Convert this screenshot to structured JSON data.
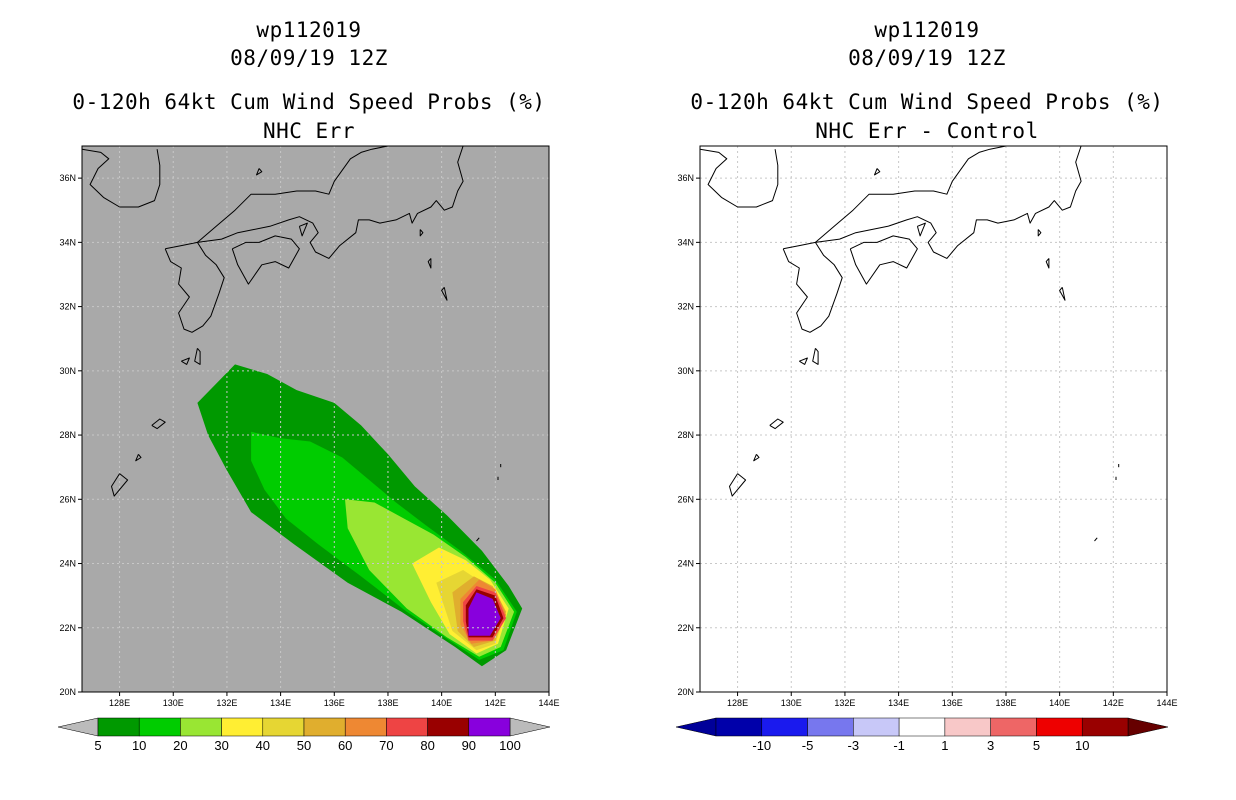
{
  "colors": {
    "left_background": "#a9a9a9",
    "right_background": "#ffffff",
    "coast": "#000000",
    "grid": "#c8c8c8"
  },
  "chart_data": [
    {
      "type": "contour-map",
      "storm": "wp112019",
      "date": "08/09/19 12Z",
      "title": "0-120h 64kt Cum Wind Speed Probs (%)",
      "subtitle": "NHC Err",
      "xlim": [
        126.6,
        144
      ],
      "ylim": [
        20,
        37
      ],
      "x_ticks": [
        "128E",
        "130E",
        "132E",
        "134E",
        "136E",
        "138E",
        "140E",
        "142E",
        "144E"
      ],
      "y_ticks": [
        "20N",
        "22N",
        "24N",
        "26N",
        "28N",
        "30N",
        "32N",
        "34N",
        "36N"
      ],
      "x_tick_values": [
        128,
        130,
        132,
        134,
        136,
        138,
        140,
        142,
        144
      ],
      "y_tick_values": [
        20,
        22,
        24,
        26,
        28,
        30,
        32,
        34,
        36
      ],
      "levels": [
        5,
        10,
        20,
        30,
        40,
        50,
        60,
        70,
        80,
        90,
        100
      ],
      "level_colors": [
        "#009900",
        "#00cc00",
        "#99e633",
        "#ffee33",
        "#e6d633",
        "#e0ae2e",
        "#ee8833",
        "#ee4444",
        "#990000",
        "#8800dd"
      ],
      "legend_labels": [
        "5",
        "10",
        "20",
        "30",
        "40",
        "50",
        "60",
        "70",
        "80",
        "90",
        "100"
      ],
      "contours": [
        {
          "level": 5,
          "color": "#009900",
          "points": [
            [
              130.9,
              29.0
            ],
            [
              132.3,
              30.2
            ],
            [
              133.5,
              29.9
            ],
            [
              134.6,
              29.4
            ],
            [
              136.0,
              29.0
            ],
            [
              137.0,
              28.3
            ],
            [
              138.0,
              27.4
            ],
            [
              139.0,
              26.4
            ],
            [
              140.2,
              25.5
            ],
            [
              141.5,
              24.4
            ],
            [
              142.5,
              23.3
            ],
            [
              143.0,
              22.6
            ],
            [
              142.4,
              21.3
            ],
            [
              141.5,
              20.8
            ],
            [
              140.5,
              21.4
            ],
            [
              138.5,
              22.5
            ],
            [
              136.5,
              23.4
            ],
            [
              134.5,
              24.6
            ],
            [
              132.9,
              25.6
            ],
            [
              132.0,
              26.9
            ],
            [
              131.3,
              28.0
            ]
          ]
        },
        {
          "level": 10,
          "color": "#00cc00",
          "points": [
            [
              132.9,
              28.1
            ],
            [
              134.0,
              27.9
            ],
            [
              135.1,
              27.8
            ],
            [
              136.3,
              27.3
            ],
            [
              137.3,
              26.6
            ],
            [
              138.3,
              25.9
            ],
            [
              139.4,
              25.2
            ],
            [
              140.7,
              24.4
            ],
            [
              142.0,
              23.5
            ],
            [
              142.8,
              22.5
            ],
            [
              142.3,
              21.3
            ],
            [
              141.4,
              21.0
            ],
            [
              140.3,
              21.6
            ],
            [
              138.7,
              22.5
            ],
            [
              137.0,
              23.6
            ],
            [
              135.4,
              24.6
            ],
            [
              134.2,
              25.4
            ],
            [
              133.4,
              26.3
            ],
            [
              132.9,
              27.2
            ]
          ]
        },
        {
          "level": 20,
          "color": "#99e633",
          "points": [
            [
              136.4,
              26.0
            ],
            [
              137.5,
              25.9
            ],
            [
              138.6,
              25.4
            ],
            [
              139.7,
              24.9
            ],
            [
              140.9,
              24.2
            ],
            [
              142.0,
              23.4
            ],
            [
              142.7,
              22.5
            ],
            [
              142.2,
              21.4
            ],
            [
              141.4,
              21.1
            ],
            [
              140.2,
              21.7
            ],
            [
              138.7,
              22.6
            ],
            [
              137.3,
              23.8
            ],
            [
              136.5,
              25.1
            ]
          ]
        },
        {
          "level": 30,
          "color": "#ffee33",
          "points": [
            [
              138.9,
              24.0
            ],
            [
              139.9,
              24.5
            ],
            [
              140.9,
              24.1
            ],
            [
              141.8,
              23.5
            ],
            [
              142.5,
              22.6
            ],
            [
              142.1,
              21.5
            ],
            [
              141.3,
              21.2
            ],
            [
              140.3,
              21.8
            ],
            [
              139.6,
              22.8
            ]
          ]
        },
        {
          "level": 40,
          "color": "#e6d633",
          "points": [
            [
              139.8,
              23.4
            ],
            [
              140.8,
              23.8
            ],
            [
              141.7,
              23.3
            ],
            [
              142.4,
              22.5
            ],
            [
              142.0,
              21.5
            ],
            [
              141.3,
              21.3
            ],
            [
              140.4,
              21.9
            ]
          ]
        },
        {
          "level": 50,
          "color": "#e0ae2e",
          "points": [
            [
              140.4,
              23.1
            ],
            [
              141.2,
              23.6
            ],
            [
              141.9,
              23.3
            ],
            [
              142.4,
              22.5
            ],
            [
              142.0,
              21.6
            ],
            [
              141.2,
              21.4
            ],
            [
              140.6,
              21.9
            ]
          ]
        },
        {
          "level": 60,
          "color": "#ee8833",
          "points": [
            [
              140.7,
              22.9
            ],
            [
              141.4,
              23.5
            ],
            [
              142.0,
              23.2
            ],
            [
              142.4,
              22.4
            ],
            [
              141.9,
              21.6
            ],
            [
              141.1,
              21.5
            ],
            [
              140.7,
              22.1
            ]
          ]
        },
        {
          "level": 70,
          "color": "#ee4444",
          "points": [
            [
              140.8,
              22.8
            ],
            [
              141.3,
              23.3
            ],
            [
              142.0,
              23.1
            ],
            [
              142.4,
              22.3
            ],
            [
              141.9,
              21.6
            ],
            [
              141.0,
              21.6
            ],
            [
              140.8,
              22.2
            ]
          ]
        },
        {
          "level": 80,
          "color": "#990000",
          "points": [
            [
              140.9,
              22.7
            ],
            [
              141.3,
              23.2
            ],
            [
              142.0,
              23.0
            ],
            [
              142.3,
              22.3
            ],
            [
              141.9,
              21.7
            ],
            [
              141.0,
              21.7
            ],
            [
              140.9,
              22.2
            ]
          ]
        },
        {
          "level": 90,
          "color": "#8800dd",
          "points": [
            [
              141.0,
              22.6
            ],
            [
              141.3,
              23.1
            ],
            [
              141.9,
              22.9
            ],
            [
              142.2,
              22.3
            ],
            [
              141.8,
              21.75
            ],
            [
              141.0,
              21.75
            ],
            [
              141.0,
              22.2
            ]
          ]
        }
      ]
    },
    {
      "type": "contour-map",
      "storm": "wp112019",
      "date": "08/09/19 12Z",
      "title": "0-120h 64kt Cum Wind Speed Probs (%)",
      "subtitle": "NHC Err - Control",
      "xlim": [
        126.6,
        144
      ],
      "ylim": [
        20,
        37
      ],
      "x_ticks": [
        "128E",
        "130E",
        "132E",
        "134E",
        "136E",
        "138E",
        "140E",
        "142E",
        "144E"
      ],
      "y_ticks": [
        "20N",
        "22N",
        "24N",
        "26N",
        "28N",
        "30N",
        "32N",
        "34N",
        "36N"
      ],
      "x_tick_values": [
        128,
        130,
        132,
        134,
        136,
        138,
        140,
        142,
        144
      ],
      "y_tick_values": [
        20,
        22,
        24,
        26,
        28,
        30,
        32,
        34,
        36
      ],
      "levels": [
        -10,
        -5,
        -3,
        -1,
        1,
        3,
        5,
        10
      ],
      "level_colors": [
        "#0000aa",
        "#1a1aee",
        "#7777ee",
        "#c8c8f8",
        "#ffffff",
        "#f8c8c8",
        "#ee6666",
        "#ee0000",
        "#990000"
      ],
      "legend_labels": [
        "-10",
        "-5",
        "-3",
        "-1",
        "1",
        "3",
        "5",
        "10"
      ],
      "contours": []
    }
  ],
  "coastlines": [
    [
      [
        126.6,
        36.9
      ],
      [
        127.3,
        36.8
      ],
      [
        127.6,
        36.6
      ],
      [
        127.2,
        36.3
      ],
      [
        126.9,
        35.8
      ],
      [
        127.4,
        35.4
      ],
      [
        128.0,
        35.1
      ],
      [
        128.7,
        35.1
      ],
      [
        129.3,
        35.3
      ],
      [
        129.5,
        35.8
      ],
      [
        129.5,
        36.4
      ],
      [
        129.4,
        36.9
      ]
    ],
    [
      [
        129.7,
        33.8
      ],
      [
        130.3,
        33.9
      ],
      [
        130.9,
        34.0
      ],
      [
        131.2,
        33.6
      ],
      [
        131.6,
        33.3
      ],
      [
        131.9,
        32.9
      ],
      [
        131.7,
        32.4
      ],
      [
        131.4,
        31.7
      ],
      [
        131.1,
        31.4
      ],
      [
        130.7,
        31.2
      ],
      [
        130.4,
        31.3
      ],
      [
        130.2,
        31.8
      ],
      [
        130.6,
        32.3
      ],
      [
        130.2,
        32.7
      ],
      [
        130.3,
        33.2
      ],
      [
        129.9,
        33.4
      ],
      [
        129.7,
        33.8
      ]
    ],
    [
      [
        130.9,
        34.0
      ],
      [
        131.6,
        34.5
      ],
      [
        132.3,
        35.0
      ],
      [
        132.9,
        35.5
      ],
      [
        133.8,
        35.5
      ],
      [
        134.6,
        35.6
      ],
      [
        135.3,
        35.6
      ],
      [
        135.8,
        35.5
      ],
      [
        136.0,
        35.9
      ],
      [
        136.6,
        36.6
      ],
      [
        137.0,
        36.8
      ],
      [
        137.4,
        36.9
      ],
      [
        138.0,
        37.0
      ]
    ],
    [
      [
        130.9,
        34.0
      ],
      [
        131.8,
        34.1
      ],
      [
        132.4,
        34.3
      ],
      [
        133.0,
        34.4
      ],
      [
        133.6,
        34.5
      ],
      [
        134.3,
        34.7
      ],
      [
        134.7,
        34.8
      ],
      [
        135.2,
        34.6
      ],
      [
        135.4,
        34.3
      ],
      [
        135.1,
        34.0
      ],
      [
        135.3,
        33.7
      ],
      [
        135.8,
        33.5
      ],
      [
        136.2,
        33.9
      ],
      [
        136.8,
        34.3
      ],
      [
        136.9,
        34.7
      ],
      [
        137.3,
        34.7
      ],
      [
        137.7,
        34.6
      ],
      [
        138.3,
        34.7
      ],
      [
        138.8,
        34.9
      ],
      [
        138.9,
        34.6
      ],
      [
        139.1,
        34.9
      ],
      [
        139.6,
        35.1
      ],
      [
        139.8,
        35.3
      ],
      [
        140.1,
        35.0
      ],
      [
        140.4,
        35.1
      ],
      [
        140.6,
        35.6
      ],
      [
        140.8,
        35.9
      ],
      [
        140.6,
        36.5
      ],
      [
        140.8,
        37.0
      ]
    ],
    [
      [
        132.2,
        33.8
      ],
      [
        132.7,
        34.0
      ],
      [
        133.2,
        34.0
      ],
      [
        133.8,
        34.2
      ],
      [
        134.4,
        34.1
      ],
      [
        134.7,
        33.8
      ],
      [
        134.3,
        33.2
      ],
      [
        133.8,
        33.4
      ],
      [
        133.3,
        33.3
      ],
      [
        132.8,
        32.7
      ],
      [
        132.4,
        33.3
      ],
      [
        132.2,
        33.8
      ]
    ],
    [
      [
        130.3,
        30.3
      ],
      [
        130.6,
        30.4
      ],
      [
        130.5,
        30.2
      ],
      [
        130.3,
        30.3
      ]
    ],
    [
      [
        130.9,
        30.7
      ],
      [
        131.0,
        30.6
      ],
      [
        131.0,
        30.2
      ],
      [
        130.8,
        30.3
      ],
      [
        130.9,
        30.7
      ]
    ],
    [
      [
        129.2,
        28.3
      ],
      [
        129.5,
        28.5
      ],
      [
        129.7,
        28.4
      ],
      [
        129.4,
        28.2
      ],
      [
        129.2,
        28.3
      ]
    ],
    [
      [
        128.0,
        26.8
      ],
      [
        127.7,
        26.4
      ],
      [
        127.8,
        26.1
      ],
      [
        128.3,
        26.6
      ],
      [
        128.0,
        26.8
      ]
    ],
    [
      [
        128.7,
        27.4
      ],
      [
        128.6,
        27.2
      ],
      [
        128.8,
        27.3
      ],
      [
        128.7,
        27.4
      ]
    ],
    [
      [
        134.7,
        34.5
      ],
      [
        135.0,
        34.6
      ],
      [
        134.8,
        34.2
      ],
      [
        134.7,
        34.5
      ]
    ],
    [
      [
        133.2,
        36.3
      ],
      [
        133.3,
        36.2
      ],
      [
        133.1,
        36.1
      ],
      [
        133.2,
        36.3
      ]
    ],
    [
      [
        139.2,
        34.4
      ],
      [
        139.3,
        34.3
      ],
      [
        139.2,
        34.2
      ],
      [
        139.2,
        34.4
      ]
    ],
    [
      [
        139.6,
        33.5
      ],
      [
        139.6,
        33.2
      ],
      [
        139.5,
        33.4
      ],
      [
        139.6,
        33.5
      ]
    ],
    [
      [
        140.1,
        32.6
      ],
      [
        140.2,
        32.2
      ],
      [
        140.0,
        32.5
      ],
      [
        140.1,
        32.6
      ]
    ],
    [
      [
        142.2,
        27.1
      ],
      [
        142.2,
        27.0
      ]
    ],
    [
      [
        142.1,
        26.7
      ],
      [
        142.1,
        26.6
      ]
    ],
    [
      [
        141.4,
        24.8
      ],
      [
        141.3,
        24.7
      ]
    ]
  ]
}
